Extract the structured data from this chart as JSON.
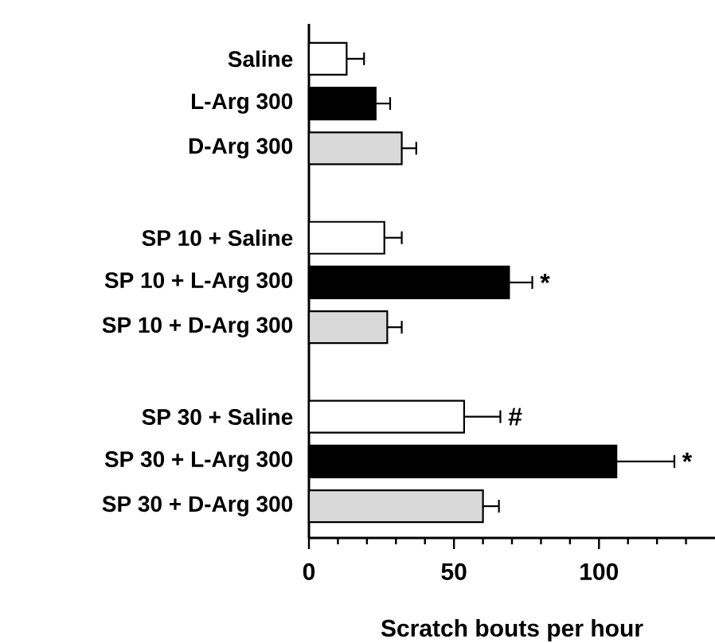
{
  "chart_data": {
    "type": "bar",
    "orientation": "horizontal",
    "xlabel": "Scratch bouts per hour",
    "categories": [
      "Saline",
      "L-Arg 300",
      "D-Arg 300",
      null,
      "SP 10 +      Saline",
      "SP 10 +  L-Arg 300",
      "SP 10 +  D-Arg 300",
      null,
      "SP 30 +      Saline",
      "SP 30 +  L-Arg 300",
      "SP 30 +  D-Arg 300"
    ],
    "values": [
      13,
      23,
      32,
      null,
      26,
      69,
      27,
      null,
      53.5,
      106,
      60
    ],
    "errors": [
      6,
      5,
      5,
      null,
      6,
      8,
      5,
      null,
      12.5,
      20,
      5.5
    ],
    "colors": [
      "#ffffff",
      "#000000",
      "#d9d9d9",
      "#ffffff",
      "#ffffff",
      "#000000",
      "#d9d9d9",
      "#ffffff",
      "#ffffff",
      "#000000",
      "#d9d9d9"
    ],
    "xlim": [
      0,
      140
    ],
    "xticks": [
      0,
      {
        "value": 10,
        "label": null
      },
      {
        "value": 20,
        "label": null
      },
      {
        "value": 30,
        "label": null
      },
      {
        "value": 40,
        "label": null
      },
      50,
      {
        "value": 60,
        "label": null
      },
      {
        "value": 70,
        "label": null
      },
      {
        "value": 80,
        "label": null
      },
      {
        "value": 90,
        "label": null
      },
      100,
      {
        "value": 110,
        "label": null
      },
      {
        "value": 120,
        "label": null
      },
      {
        "value": 130,
        "label": null
      }
    ],
    "annotations": [
      {
        "text": "*",
        "x": 77,
        "y": "SP 10 +  L-Arg 300"
      },
      {
        "text": "#",
        "x": 66,
        "y": "SP 30 +      Saline"
      },
      {
        "text": "*",
        "x": 126,
        "y": "SP 30 +  L-Arg 300"
      }
    ],
    "grid": false
  }
}
